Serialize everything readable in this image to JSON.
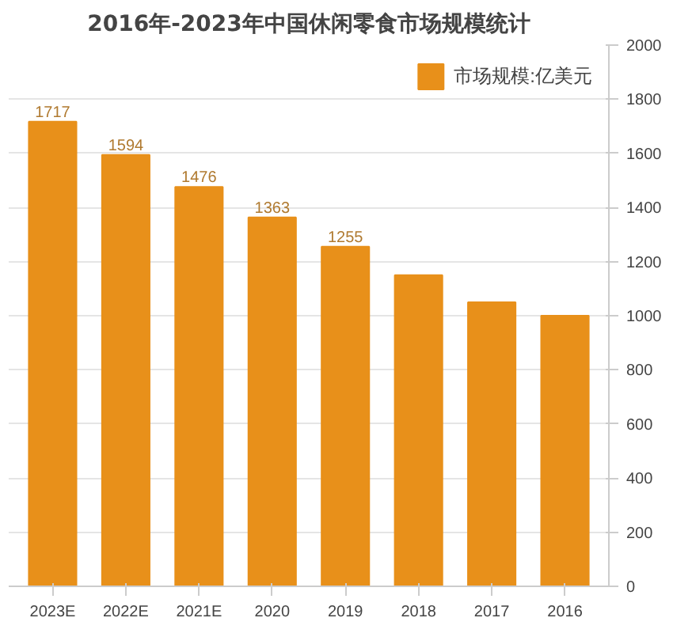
{
  "chart_data": {
    "type": "bar",
    "title": "2016年-2023年中国休闲零食市场规模统计",
    "categories": [
      "2023E",
      "2022E",
      "2021E",
      "2020",
      "2019",
      "2018",
      "2017",
      "2016"
    ],
    "series": [
      {
        "name": "市场规模:亿美元",
        "color": "#e8901a",
        "values": [
          1717,
          1594,
          1476,
          1363,
          1255,
          1150,
          1050,
          1000
        ],
        "value_labels": [
          "1717",
          "1594",
          "1476",
          "1363",
          "1255",
          null,
          null,
          null
        ]
      }
    ],
    "ylim": [
      0,
      2000
    ],
    "yticks": [
      0,
      200,
      400,
      600,
      800,
      1000,
      1200,
      1400,
      1600,
      1800,
      2000
    ],
    "grid": "y",
    "legend": "top right"
  }
}
